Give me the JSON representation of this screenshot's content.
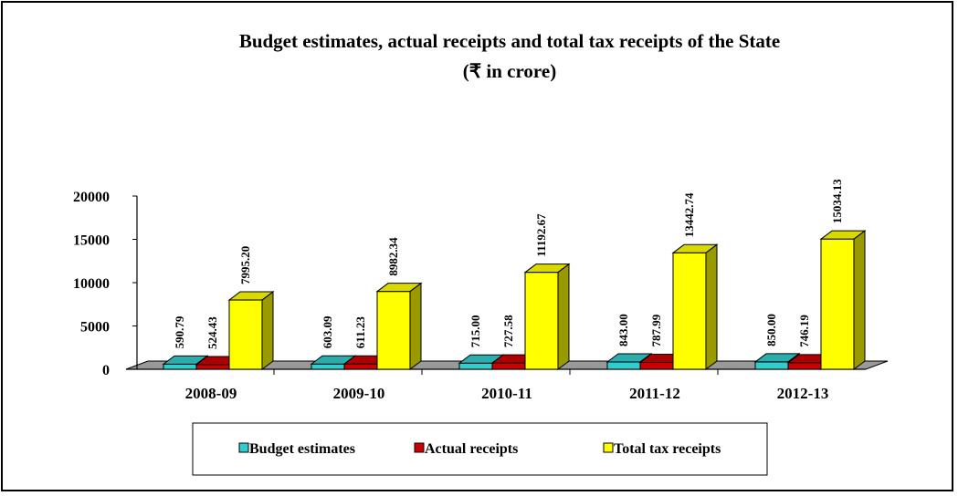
{
  "chart_data": {
    "type": "bar",
    "title": "Budget estimates, actual receipts and total tax receipts of the State",
    "subtitle": "(₹ in crore)",
    "categories": [
      "2008-09",
      "2009-10",
      "2010-11",
      "2011-12",
      "2012-13"
    ],
    "series": [
      {
        "name": "Budget estimates",
        "color": "#33CCCC",
        "values": [
          590.79,
          603.09,
          715.0,
          843.0,
          850.0
        ],
        "labels": [
          "590.79",
          "603.09",
          "715.00",
          "843.00",
          "850.00"
        ]
      },
      {
        "name": "Actual receipts",
        "color": "#CC0000",
        "values": [
          524.43,
          611.23,
          727.58,
          787.99,
          746.19
        ],
        "labels": [
          "524.43",
          "611.23",
          "727.58",
          "787.99",
          "746.19"
        ]
      },
      {
        "name": "Total tax receipts",
        "color": "#FFFF00",
        "values": [
          7995.2,
          8982.34,
          11192.67,
          13442.74,
          15034.13
        ],
        "labels": [
          "7995.20",
          "8982.34",
          "11192.67",
          "13442.74",
          "15034.13"
        ]
      }
    ],
    "ylim": [
      0,
      20000
    ],
    "yticks": [
      "0",
      "5000",
      "10000",
      "15000",
      "20000"
    ],
    "grid": false,
    "legend_position": "bottom",
    "style": "3d-column"
  }
}
